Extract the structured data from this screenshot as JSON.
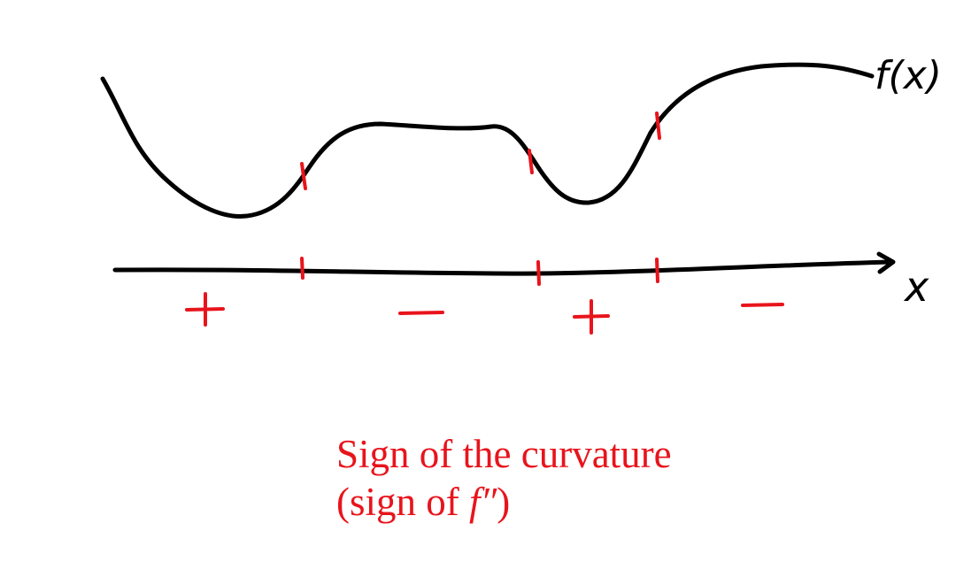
{
  "diagram": {
    "function_label": "f(x)",
    "axis_label": "x",
    "signs": [
      "+",
      "−",
      "+",
      "−"
    ],
    "caption": {
      "line1": "Sign of the curvature",
      "line2_prefix": "(sign of ",
      "line2_math": "f″",
      "line2_suffix": ")"
    },
    "colors": {
      "ink": "#000000",
      "accent": "#e8141c"
    }
  }
}
